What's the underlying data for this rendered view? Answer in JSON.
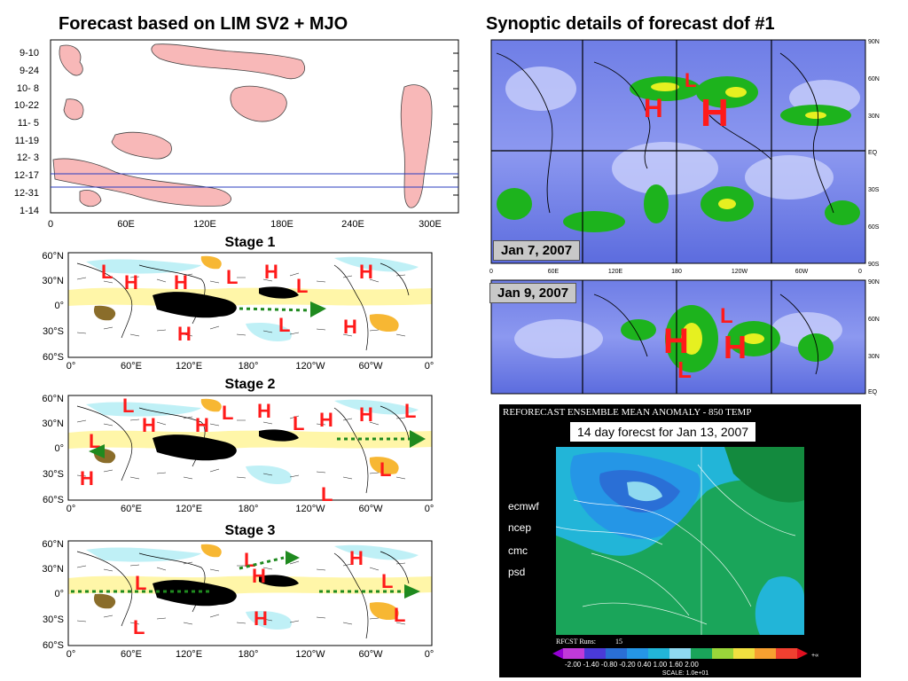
{
  "titles": {
    "left": "Forecast based on LIM SV2 + MJO",
    "right": "Synoptic details of forecast dof #1"
  },
  "hovmoller": {
    "y_labels": [
      "9-10",
      "9-24",
      "10- 8",
      "10-22",
      "11- 5",
      "11-19",
      "12- 3",
      "12-17",
      "12-31",
      "1-14"
    ],
    "x_labels": [
      "0",
      "60E",
      "120E",
      "180E",
      "240E",
      "300E"
    ]
  },
  "stages": [
    {
      "title": "Stage 1"
    },
    {
      "title": "Stage 2"
    },
    {
      "title": "Stage 3"
    }
  ],
  "stage_axes": {
    "lat_labels": [
      "60°N",
      "30°N",
      "0°",
      "30°S",
      "60°S"
    ],
    "lon_labels": [
      "0°",
      "60°E",
      "120°E",
      "180°",
      "120°W",
      "60°W",
      "0°"
    ]
  },
  "synoptic": {
    "lat_labels": [
      "90N",
      "60N",
      "30N",
      "EQ",
      "30S",
      "60S",
      "90S"
    ],
    "lon_labels": [
      "0",
      "60E",
      "120E",
      "180",
      "120W",
      "60W",
      "0"
    ],
    "top_date": "Jan 7, 2007",
    "bottom_date": "Jan 9, 2007",
    "bottom_lat_labels": [
      "90N",
      "60N",
      "30N",
      "EQ"
    ]
  },
  "reforecast": {
    "title": "REFORECAST ENSEMBLE MEAN ANOMALY - 850 TEMP",
    "subtitle": "14 day forecst for Jan 13, 2007",
    "models": [
      "ecmwf",
      "ncep",
      "cmc",
      "psd"
    ],
    "runs_label": "RFCST Runs:",
    "runs_value": "15",
    "scale_text": "-2.00 -1.40 -0.80 -0.20 0.40 1.00 1.60 2.00",
    "scale_note": "SCALE: 1.0e+01",
    "scale_end_left": "-∞",
    "scale_end_right": "+∞"
  },
  "colors": {
    "anom_red": "#ff1a1a",
    "pink_fill": "#f8b8b8",
    "blue_line": "#2a3cbf"
  }
}
